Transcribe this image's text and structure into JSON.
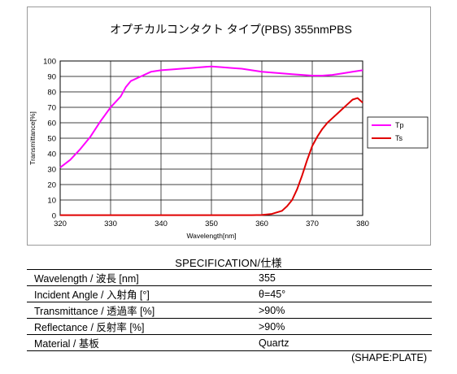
{
  "chart_data": {
    "type": "line",
    "title": "オプチカルコンタクト タイプ(PBS)  355nmPBS",
    "xlabel": "Wavelength[nm]",
    "ylabel": "Transmittance[%]",
    "xlim": [
      320,
      380
    ],
    "ylim": [
      0,
      100
    ],
    "xticks": [
      320,
      330,
      340,
      350,
      360,
      370,
      380
    ],
    "yticks": [
      0,
      10,
      20,
      30,
      40,
      50,
      60,
      70,
      80,
      90,
      100
    ],
    "grid": true,
    "legend_position": "right",
    "series": [
      {
        "name": "Tp",
        "color": "#ff00ff",
        "x": [
          320,
          322,
          324,
          326,
          328,
          330,
          332,
          333,
          334,
          336,
          338,
          340,
          342,
          344,
          346,
          348,
          350,
          352,
          354,
          356,
          358,
          360,
          362,
          364,
          366,
          368,
          370,
          372,
          374,
          376,
          378,
          380
        ],
        "y": [
          31,
          36,
          43,
          51,
          61,
          70,
          77,
          83,
          87,
          90,
          93,
          94,
          94.5,
          95,
          95.5,
          96,
          96.5,
          96,
          95.5,
          95,
          94,
          93,
          92.5,
          92,
          91.5,
          91,
          90.5,
          90.5,
          91,
          92,
          93,
          94
        ]
      },
      {
        "name": "Ts",
        "color": "#e00000",
        "x": [
          320,
          330,
          340,
          350,
          355,
          358,
          360,
          362,
          364,
          365,
          366,
          367,
          368,
          369,
          370,
          371,
          372,
          373,
          374,
          375,
          376,
          377,
          378,
          379,
          380
        ],
        "y": [
          0.2,
          0.2,
          0.2,
          0.2,
          0.2,
          0.2,
          0.3,
          1,
          3,
          6,
          10,
          17,
          26,
          36,
          45,
          51,
          56,
          60,
          63,
          66,
          69,
          72,
          75,
          76,
          73
        ]
      }
    ]
  },
  "spec": {
    "title": "SPECIFICATION/仕様",
    "rows": [
      {
        "label": "Wavelength / 波長 [nm]",
        "value": "355"
      },
      {
        "label": "Incident Angle / 入射角 [°]",
        "value": "θ=45°"
      },
      {
        "label": "Transmittance / 透過率 [%]",
        "value": ">90%"
      },
      {
        "label": "Reflectance / 反射率 [%]",
        "value": ">90%"
      },
      {
        "label": "Material / 基板",
        "value": "Quartz"
      }
    ],
    "note": "(SHAPE:PLATE)"
  }
}
